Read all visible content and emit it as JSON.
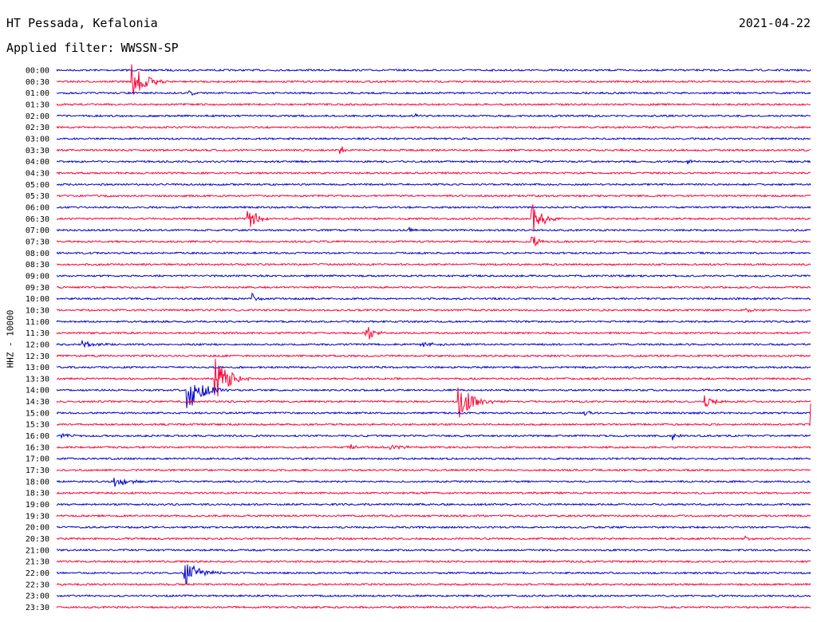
{
  "header": {
    "station": "HT Pessada, Kefalonia",
    "date": "2021-04-22",
    "filter_prefix": "Applied filter:",
    "filter_name": "WWSSN-SP"
  },
  "axis_label": "HHZ - 10000",
  "colors": {
    "odd_line": "#0000cc",
    "even_line": "#ff0033",
    "text": "#000000"
  },
  "chart_data": {
    "type": "line",
    "subtype": "helicorder",
    "rows": [
      "00:00",
      "00:30",
      "01:00",
      "01:30",
      "02:00",
      "02:30",
      "03:00",
      "03:30",
      "04:00",
      "04:30",
      "05:00",
      "05:30",
      "06:00",
      "06:30",
      "07:00",
      "07:30",
      "08:00",
      "08:30",
      "09:00",
      "09:30",
      "10:00",
      "10:30",
      "11:00",
      "11:30",
      "12:00",
      "12:30",
      "13:00",
      "13:30",
      "14:00",
      "14:30",
      "15:00",
      "15:30",
      "16:00",
      "16:30",
      "17:00",
      "17:30",
      "18:00",
      "18:30",
      "19:00",
      "19:30",
      "20:00",
      "20:30",
      "21:00",
      "21:30",
      "22:00",
      "22:30",
      "23:00",
      "23:30"
    ],
    "row_minutes": 30,
    "events": [
      {
        "row": "00:30",
        "minute": 3.0,
        "amplitude": 1.6,
        "duration_min": 1.4
      },
      {
        "row": "01:00",
        "minute": 5.3,
        "amplitude": 0.25,
        "duration_min": 0.6
      },
      {
        "row": "02:00",
        "minute": 14.3,
        "amplitude": 0.2,
        "duration_min": 0.6
      },
      {
        "row": "03:30",
        "minute": 11.3,
        "amplitude": 0.5,
        "duration_min": 0.4
      },
      {
        "row": "04:00",
        "minute": 25.1,
        "amplitude": 0.25,
        "duration_min": 0.6
      },
      {
        "row": "06:30",
        "minute": 7.6,
        "amplitude": 1.2,
        "duration_min": 0.9
      },
      {
        "row": "06:30",
        "minute": 18.9,
        "amplitude": 1.6,
        "duration_min": 1.0
      },
      {
        "row": "07:00",
        "minute": 14.0,
        "amplitude": 0.3,
        "duration_min": 0.5
      },
      {
        "row": "07:30",
        "minute": 18.9,
        "amplitude": 0.9,
        "duration_min": 0.6
      },
      {
        "row": "10:00",
        "minute": 7.8,
        "amplitude": 0.4,
        "duration_min": 0.5
      },
      {
        "row": "10:30",
        "minute": 27.4,
        "amplitude": 0.2,
        "duration_min": 1.0
      },
      {
        "row": "11:30",
        "minute": 12.3,
        "amplitude": 0.9,
        "duration_min": 0.8
      },
      {
        "row": "12:00",
        "minute": 1.0,
        "amplitude": 0.3,
        "duration_min": 1.2
      },
      {
        "row": "12:00",
        "minute": 14.5,
        "amplitude": 0.3,
        "duration_min": 1.2
      },
      {
        "row": "13:30",
        "minute": 6.3,
        "amplitude": 2.0,
        "duration_min": 1.4
      },
      {
        "row": "14:00",
        "minute": 5.2,
        "amplitude": 1.9,
        "duration_min": 1.6
      },
      {
        "row": "14:30",
        "minute": 16.0,
        "amplitude": 1.6,
        "duration_min": 1.5
      },
      {
        "row": "14:30",
        "minute": 25.8,
        "amplitude": 0.5,
        "duration_min": 1.0
      },
      {
        "row": "15:00",
        "minute": 21.0,
        "amplitude": 0.2,
        "duration_min": 1.0
      },
      {
        "row": "15:30",
        "minute": 30.0,
        "amplitude": 2.5,
        "duration_min": 1.2
      },
      {
        "row": "16:00",
        "minute": 0.2,
        "amplitude": 0.3,
        "duration_min": 0.6
      },
      {
        "row": "16:00",
        "minute": 24.5,
        "amplitude": 0.4,
        "duration_min": 0.5
      },
      {
        "row": "16:30",
        "minute": 11.5,
        "amplitude": 0.3,
        "duration_min": 1.5
      },
      {
        "row": "16:30",
        "minute": 13.3,
        "amplitude": 0.3,
        "duration_min": 1.2
      },
      {
        "row": "18:00",
        "minute": 2.3,
        "amplitude": 0.5,
        "duration_min": 1.3
      },
      {
        "row": "20:30",
        "minute": 27.4,
        "amplitude": 0.2,
        "duration_min": 0.8
      },
      {
        "row": "22:00",
        "minute": 5.1,
        "amplitude": 1.1,
        "duration_min": 1.5
      }
    ],
    "xlabel": "",
    "ylabel": "HHZ - 10000"
  }
}
